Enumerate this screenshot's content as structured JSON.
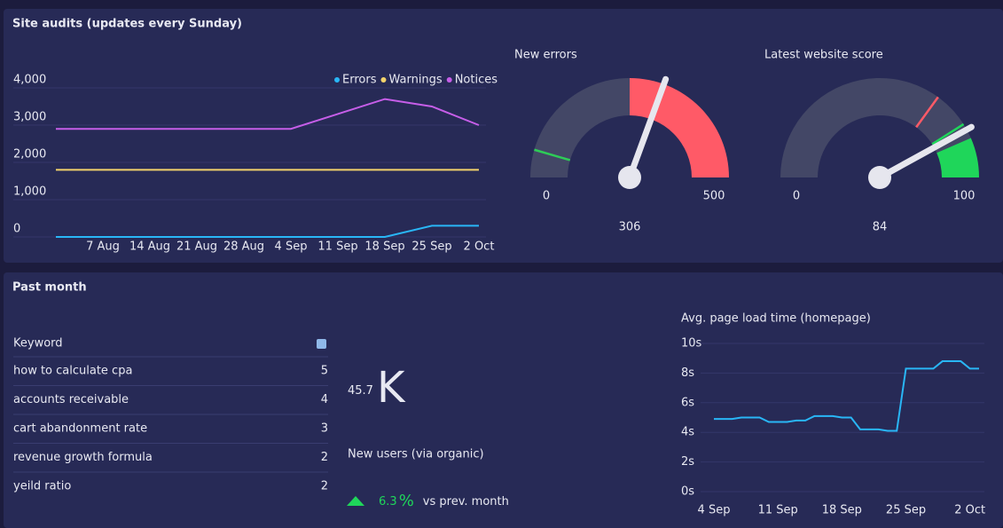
{
  "panels": {
    "top_title": "Site audits (updates every Sunday)",
    "bottom_title": "Past month"
  },
  "chart_data": [
    {
      "type": "line",
      "title": null,
      "categories": [
        null,
        "7 Aug",
        "14 Aug",
        "21 Aug",
        "28 Aug",
        "4 Sep",
        "11 Sep",
        "18 Sep",
        "25 Sep",
        "2 Oct"
      ],
      "series": [
        {
          "name": "Errors",
          "color": "#29b6f6",
          "values": [
            0,
            0,
            0,
            0,
            0,
            0,
            0,
            0,
            300,
            300
          ]
        },
        {
          "name": "Warnings",
          "color": "#f3d36b",
          "values": [
            1800,
            1800,
            1800,
            1800,
            1800,
            1800,
            1800,
            1800,
            1800,
            1800
          ]
        },
        {
          "name": "Notices",
          "color": "#c65ee8",
          "values": [
            2900,
            2900,
            2900,
            2900,
            2900,
            2900,
            3300,
            3700,
            3500,
            3000
          ]
        }
      ],
      "ylim": [
        0,
        4000
      ],
      "yticks": [
        0,
        {
          "value": 1000,
          "label": "1,000"
        },
        {
          "value": 2000,
          "label": "2,000"
        },
        {
          "value": 3000,
          "label": "3,000"
        },
        {
          "value": 4000,
          "label": "4,000"
        }
      ],
      "grid": true,
      "legend": "top-right"
    },
    {
      "type": "gauge",
      "title": "New errors",
      "value": 306,
      "ylim": [
        0,
        500
      ],
      "ticks": [
        0,
        500
      ],
      "bands": [
        {
          "from": 0,
          "to": 250,
          "color": "#434766"
        },
        {
          "from": 250,
          "to": 500,
          "color": "#ff5a67"
        }
      ],
      "markers": [
        {
          "value": 45,
          "color": "#2ecc57"
        }
      ]
    },
    {
      "type": "gauge",
      "title": "Latest website score",
      "value": 84,
      "ylim": [
        0,
        100
      ],
      "ticks": [
        0,
        100
      ],
      "bands": [
        {
          "from": 0,
          "to": 87,
          "color": "#434766"
        },
        {
          "from": 87,
          "to": 100,
          "color": "#1fd65a"
        }
      ],
      "markers": [
        {
          "value": 70,
          "color": "#ff5a67"
        },
        {
          "value": 82,
          "color": "#1fd65a"
        }
      ]
    },
    {
      "type": "line",
      "title": "Avg. page load time (homepage)",
      "categories": [
        "4 Sep",
        null,
        null,
        null,
        null,
        null,
        null,
        "11 Sep",
        null,
        null,
        null,
        null,
        null,
        null,
        "18 Sep",
        null,
        null,
        null,
        null,
        null,
        null,
        "25 Sep",
        null,
        null,
        null,
        null,
        null,
        null,
        "2 Oct",
        null
      ],
      "series": [
        {
          "name": null,
          "color": "#29b6f6",
          "values": [
            4.9,
            4.9,
            4.9,
            5.0,
            5.0,
            5.0,
            4.7,
            4.7,
            4.7,
            4.8,
            4.8,
            5.1,
            5.1,
            5.1,
            5.0,
            5.0,
            4.2,
            4.2,
            4.2,
            4.1,
            4.1,
            8.3,
            8.3,
            8.3,
            8.3,
            8.8,
            8.8,
            8.8,
            8.3,
            8.3
          ]
        }
      ],
      "ylim": [
        0,
        10
      ],
      "yticks": [
        {
          "value": 0,
          "label": "0s"
        },
        {
          "value": 2,
          "label": "2s"
        },
        {
          "value": 4,
          "label": "4s"
        },
        {
          "value": 6,
          "label": "6s"
        },
        {
          "value": 8,
          "label": "8s"
        },
        {
          "value": 10,
          "label": "10s"
        }
      ],
      "grid": true
    }
  ],
  "table": {
    "header": [
      "Keyword"
    ],
    "rows": [
      [
        "how to calculate cpa",
        "5"
      ],
      [
        "accounts receivable",
        "4"
      ],
      [
        "cart abandonment rate",
        "3"
      ],
      [
        "revenue growth formula",
        "2"
      ],
      [
        "yeild ratio",
        "2"
      ]
    ]
  },
  "kpi": {
    "value": "45.7",
    "unit": "K",
    "label": "New users (via organic)",
    "change": "6.3",
    "change_unit": "%",
    "change_label": "vs prev. month"
  }
}
